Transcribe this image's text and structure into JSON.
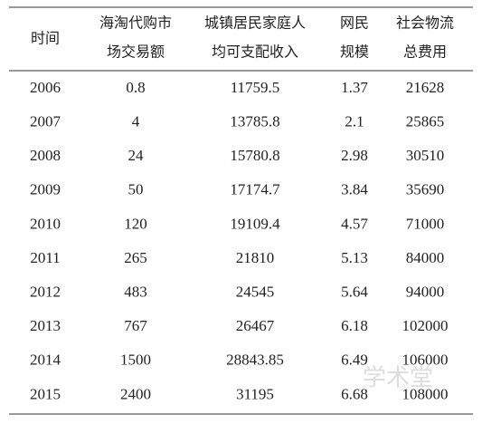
{
  "table": {
    "header": [
      [
        "时间"
      ],
      [
        "海淘代购市",
        "场交易额"
      ],
      [
        "城镇居民家庭人",
        "均可支配收入"
      ],
      [
        "网民",
        "规模"
      ],
      [
        "社会物流",
        "总费用"
      ]
    ],
    "rows": [
      [
        "2006",
        "0.8",
        "11759.5",
        "1.37",
        "21628"
      ],
      [
        "2007",
        "4",
        "13785.8",
        "2.1",
        "25865"
      ],
      [
        "2008",
        "24",
        "15780.8",
        "2.98",
        "30510"
      ],
      [
        "2009",
        "50",
        "17174.7",
        "3.84",
        "35690"
      ],
      [
        "2010",
        "120",
        "19109.4",
        "4.57",
        "71000"
      ],
      [
        "2011",
        "265",
        "21810",
        "5.13",
        "84000"
      ],
      [
        "2012",
        "483",
        "24545",
        "5.64",
        "94000"
      ],
      [
        "2013",
        "767",
        "26467",
        "6.18",
        "102000"
      ],
      [
        "2014",
        "1500",
        "28843.85",
        "6.49",
        "106000"
      ],
      [
        "2015",
        "2400",
        "31195",
        "6.68",
        "108000"
      ]
    ]
  },
  "watermark": "学术堂"
}
